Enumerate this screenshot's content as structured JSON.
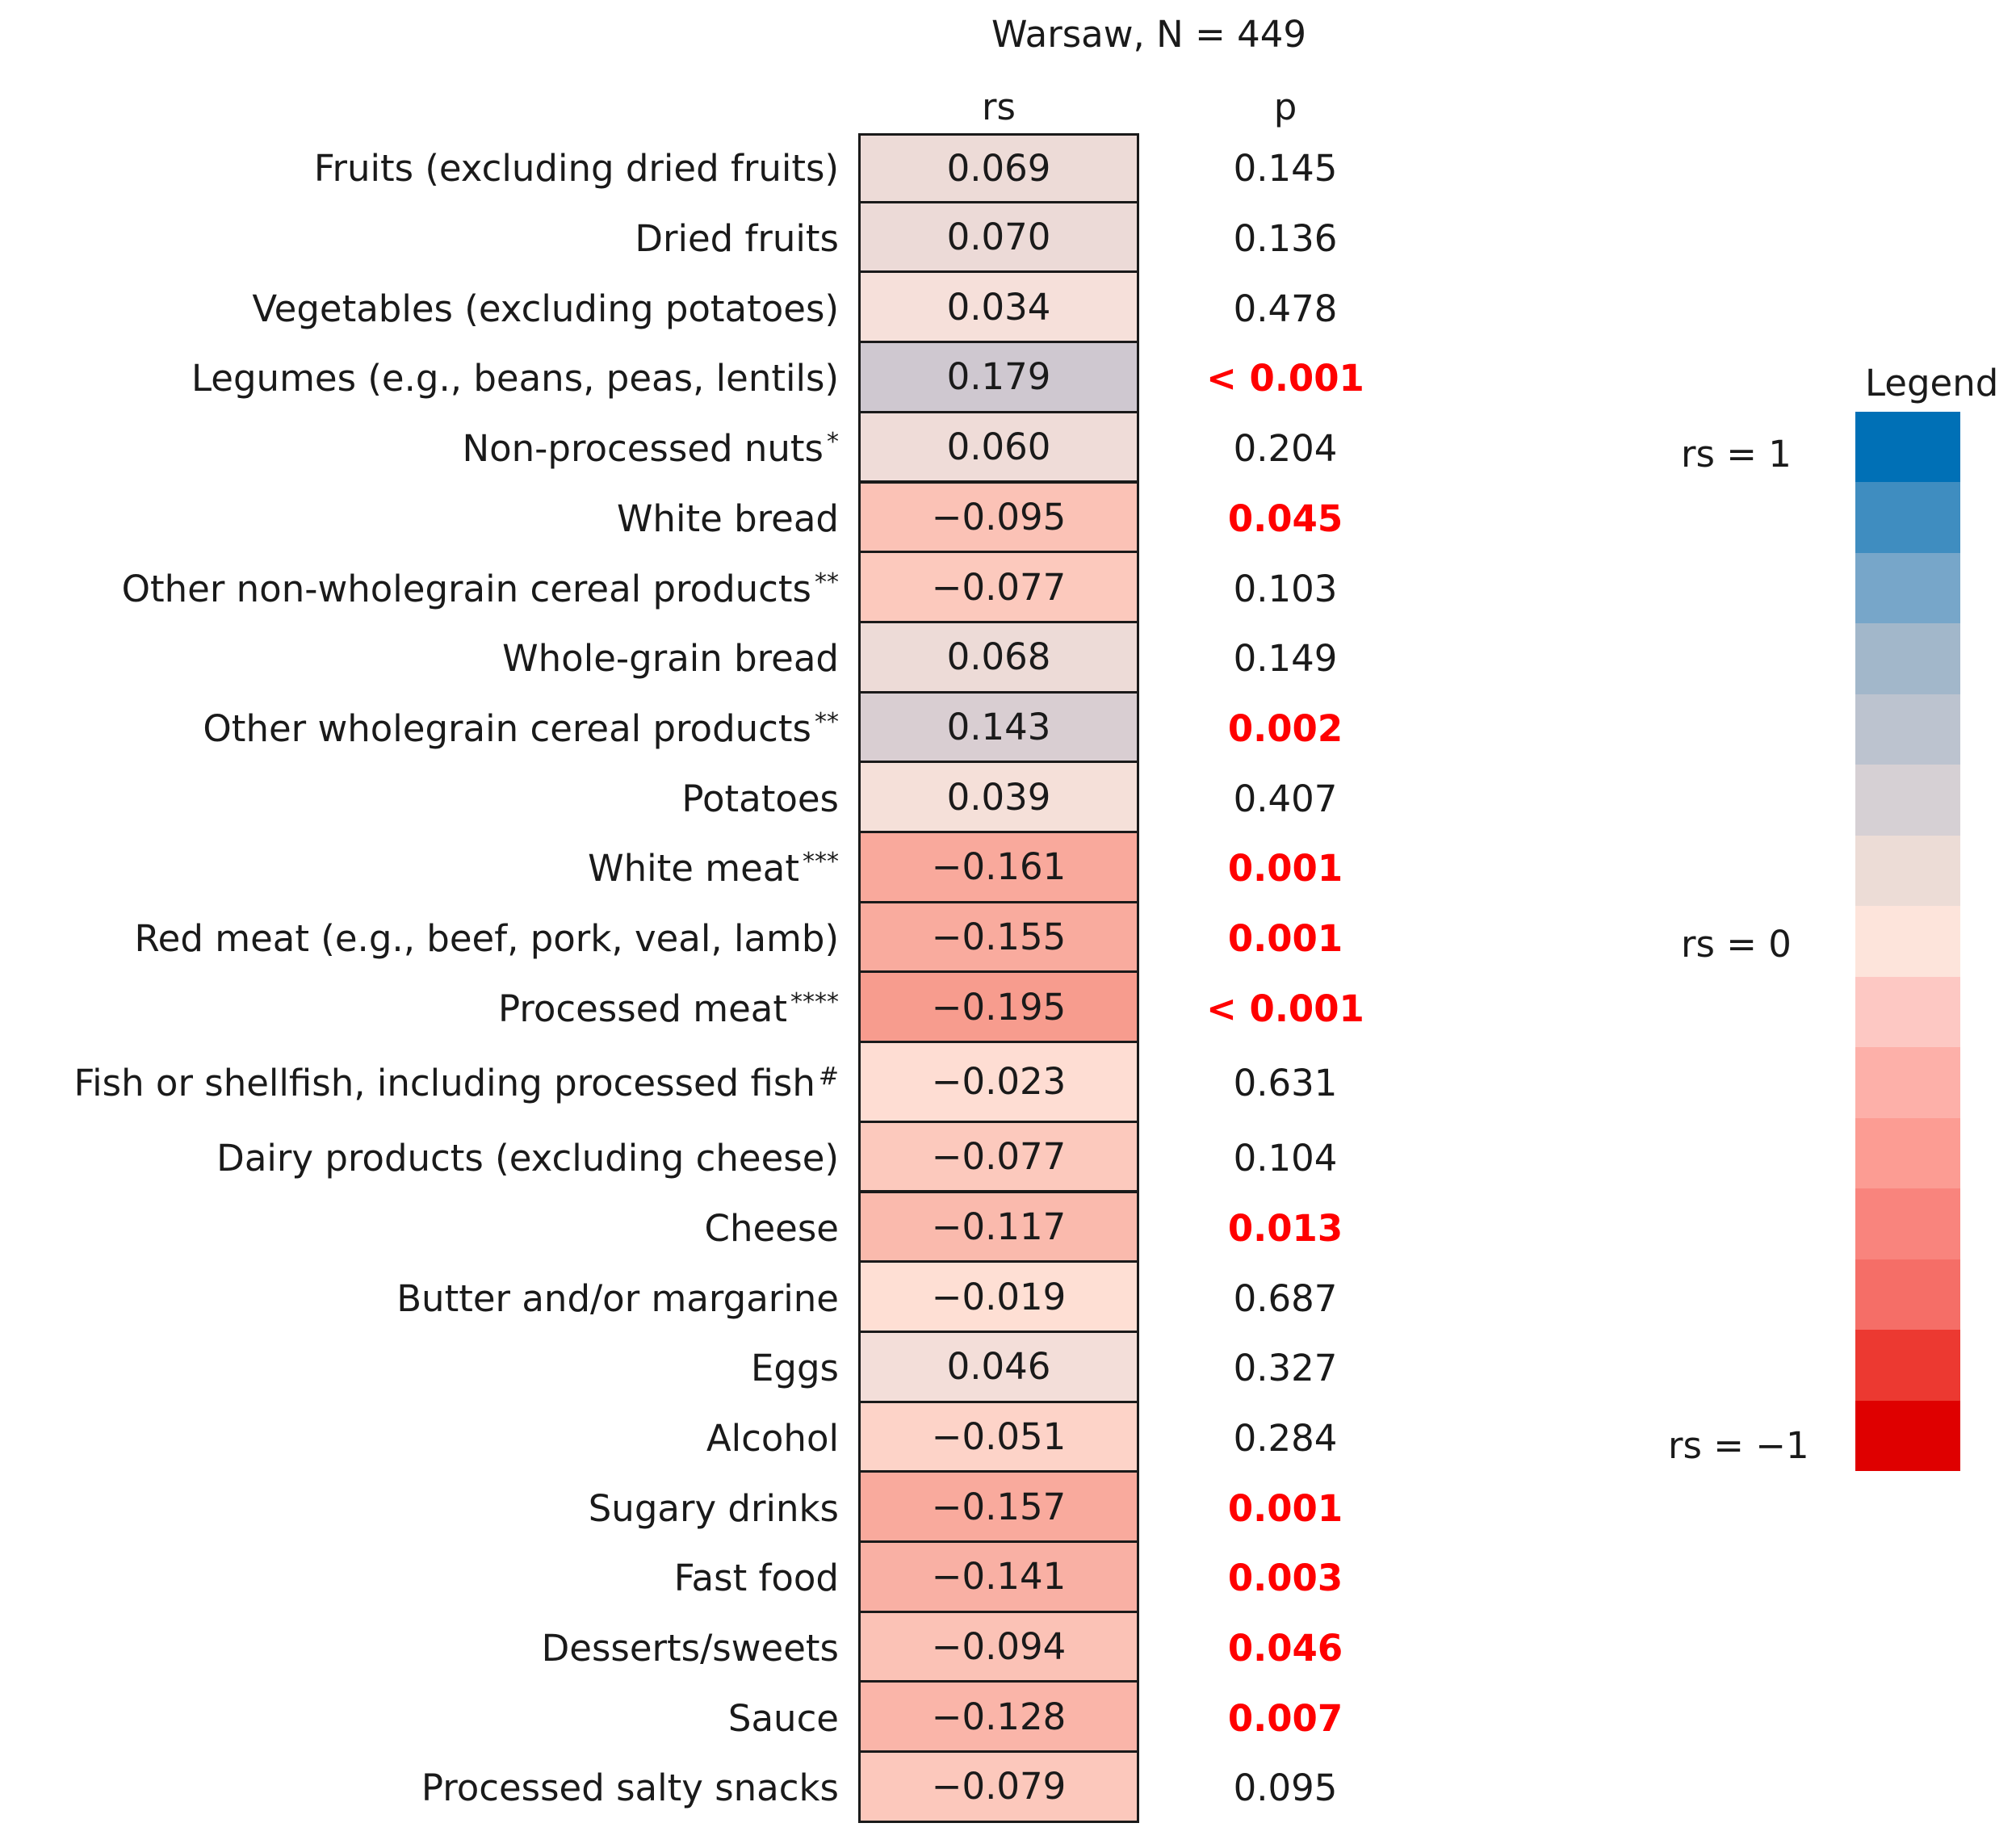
{
  "chart_data": {
    "type": "heatmap",
    "title": "Warsaw, N = 449",
    "columns": [
      "rs",
      "p"
    ],
    "rows": [
      {
        "label": "Fruits (excluding dried fruits)",
        "mark": "",
        "rs": 0.069,
        "rs_text": "0.069",
        "p_text": "0.145",
        "significant": false
      },
      {
        "label": "Dried fruits",
        "mark": "",
        "rs": 0.07,
        "rs_text": "0.070",
        "p_text": "0.136",
        "significant": false
      },
      {
        "label": "Vegetables (excluding potatoes)",
        "mark": "",
        "rs": 0.034,
        "rs_text": "0.034",
        "p_text": "0.478",
        "significant": false
      },
      {
        "label": "Legumes (e.g., beans, peas, lentils)",
        "mark": "",
        "rs": 0.179,
        "rs_text": "0.179",
        "p_text": "< 0.001",
        "significant": true
      },
      {
        "label": "Non-processed nuts",
        "mark": "*",
        "rs": 0.06,
        "rs_text": "0.060",
        "p_text": "0.204",
        "significant": false
      },
      {
        "label": "White bread",
        "mark": "",
        "rs": -0.095,
        "rs_text": "−0.095",
        "p_text": "0.045",
        "significant": true
      },
      {
        "label": "Other non-wholegrain cereal products",
        "mark": "**",
        "rs": -0.077,
        "rs_text": "−0.077",
        "p_text": "0.103",
        "significant": false
      },
      {
        "label": "Whole-grain bread",
        "mark": "",
        "rs": 0.068,
        "rs_text": "0.068",
        "p_text": "0.149",
        "significant": false
      },
      {
        "label": "Other wholegrain cereal products",
        "mark": "**",
        "rs": 0.143,
        "rs_text": "0.143",
        "p_text": "0.002",
        "significant": true
      },
      {
        "label": "Potatoes",
        "mark": "",
        "rs": 0.039,
        "rs_text": "0.039",
        "p_text": "0.407",
        "significant": false
      },
      {
        "label": "White meat",
        "mark": "***",
        "rs": -0.161,
        "rs_text": "−0.161",
        "p_text": "0.001",
        "significant": true
      },
      {
        "label": "Red meat (e.g., beef, pork, veal, lamb)",
        "mark": "",
        "rs": -0.155,
        "rs_text": "−0.155",
        "p_text": "0.001",
        "significant": true
      },
      {
        "label": "Processed meat",
        "mark": "****",
        "rs": -0.195,
        "rs_text": "−0.195",
        "p_text": "< 0.001",
        "significant": true
      },
      {
        "label": "Fish or shellfish, including processed fish",
        "mark": "#",
        "rs": -0.023,
        "rs_text": "−0.023",
        "p_text": "0.631",
        "significant": false
      },
      {
        "label": "Dairy products (excluding cheese)",
        "mark": "",
        "rs": -0.077,
        "rs_text": "−0.077",
        "p_text": "0.104",
        "significant": false
      },
      {
        "label": "Cheese",
        "mark": "",
        "rs": -0.117,
        "rs_text": "−0.117",
        "p_text": "0.013",
        "significant": true
      },
      {
        "label": "Butter and/or margarine",
        "mark": "",
        "rs": -0.019,
        "rs_text": "−0.019",
        "p_text": "0.687",
        "significant": false
      },
      {
        "label": "Eggs",
        "mark": "",
        "rs": 0.046,
        "rs_text": "0.046",
        "p_text": "0.327",
        "significant": false
      },
      {
        "label": "Alcohol",
        "mark": "",
        "rs": -0.051,
        "rs_text": "−0.051",
        "p_text": "0.284",
        "significant": false
      },
      {
        "label": "Sugary drinks",
        "mark": "",
        "rs": -0.157,
        "rs_text": "−0.157",
        "p_text": "0.001",
        "significant": true
      },
      {
        "label": "Fast food",
        "mark": "",
        "rs": -0.141,
        "rs_text": "−0.141",
        "p_text": "0.003",
        "significant": true
      },
      {
        "label": "Desserts/sweets",
        "mark": "",
        "rs": -0.094,
        "rs_text": "−0.094",
        "p_text": "0.046",
        "significant": true
      },
      {
        "label": "Sauce",
        "mark": "",
        "rs": -0.128,
        "rs_text": "−0.128",
        "p_text": "0.007",
        "significant": true
      },
      {
        "label": "Processed salty snacks",
        "mark": "",
        "rs": -0.079,
        "rs_text": "−0.079",
        "p_text": "0.095",
        "significant": false
      }
    ],
    "legend": {
      "title": "Legend",
      "labels": [
        "rs = 1",
        "rs = 0",
        "rs = −1"
      ],
      "scale_range": [
        -1,
        1
      ],
      "bands": [
        "#0070b6",
        "#3f8dc0",
        "#77a6c9",
        "#a2b7ca",
        "#bcc3cf",
        "#d6d0d4",
        "#ecdcd6",
        "#fde4db",
        "#fdc8c3",
        "#fdb0a9",
        "#fc9c93",
        "#f9847d",
        "#f56e67",
        "#ec3931",
        "#df0000"
      ]
    },
    "colors": {
      "significant_p": "#ff0000",
      "text": "#1a1a1a",
      "border": "#1a1a1a"
    }
  }
}
